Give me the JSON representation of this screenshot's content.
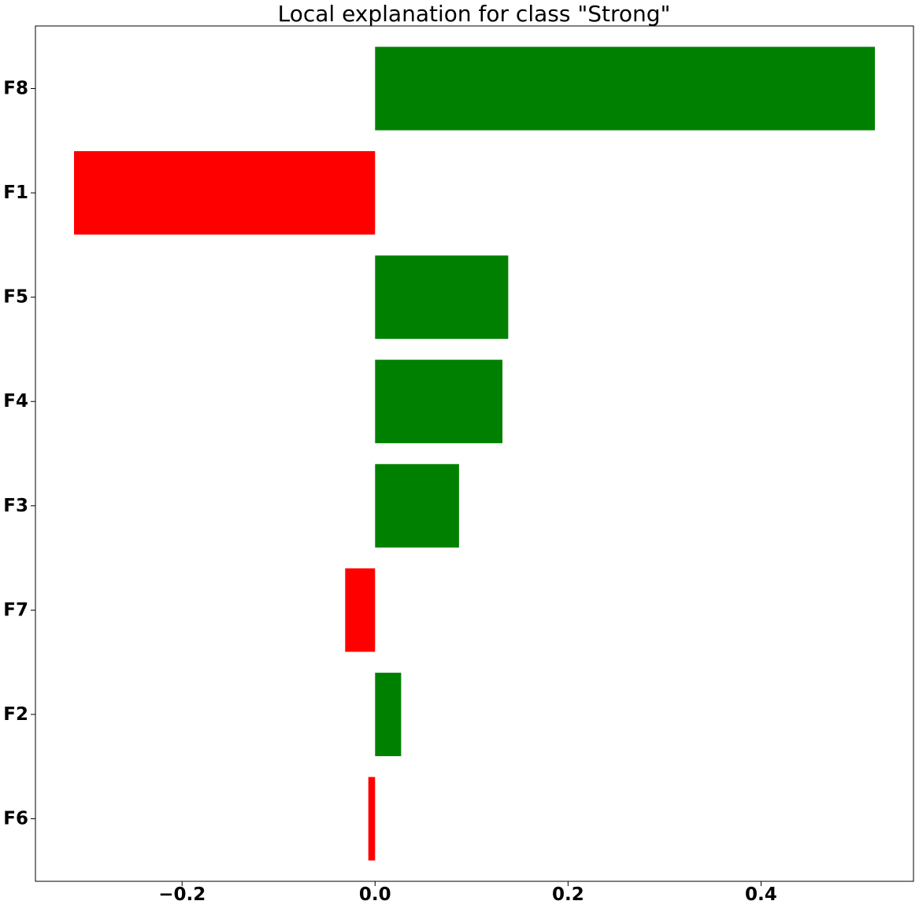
{
  "chart_data": {
    "type": "bar",
    "orientation": "horizontal",
    "title": "Local explanation for class \"Strong\"",
    "xlabel": "",
    "ylabel": "",
    "categories": [
      "F8",
      "F1",
      "F5",
      "F4",
      "F3",
      "F7",
      "F2",
      "F6"
    ],
    "values": [
      0.518,
      -0.312,
      0.138,
      0.132,
      0.087,
      -0.031,
      0.027,
      -0.007
    ],
    "xlim": [
      -0.352,
      0.558
    ],
    "x_ticks": [
      -0.2,
      0.0,
      0.2,
      0.4
    ],
    "x_tick_labels": [
      "−0.2",
      "0.0",
      "0.2",
      "0.4"
    ],
    "grid": false,
    "colors": {
      "positive": "#008000",
      "negative": "#ff0000"
    }
  }
}
